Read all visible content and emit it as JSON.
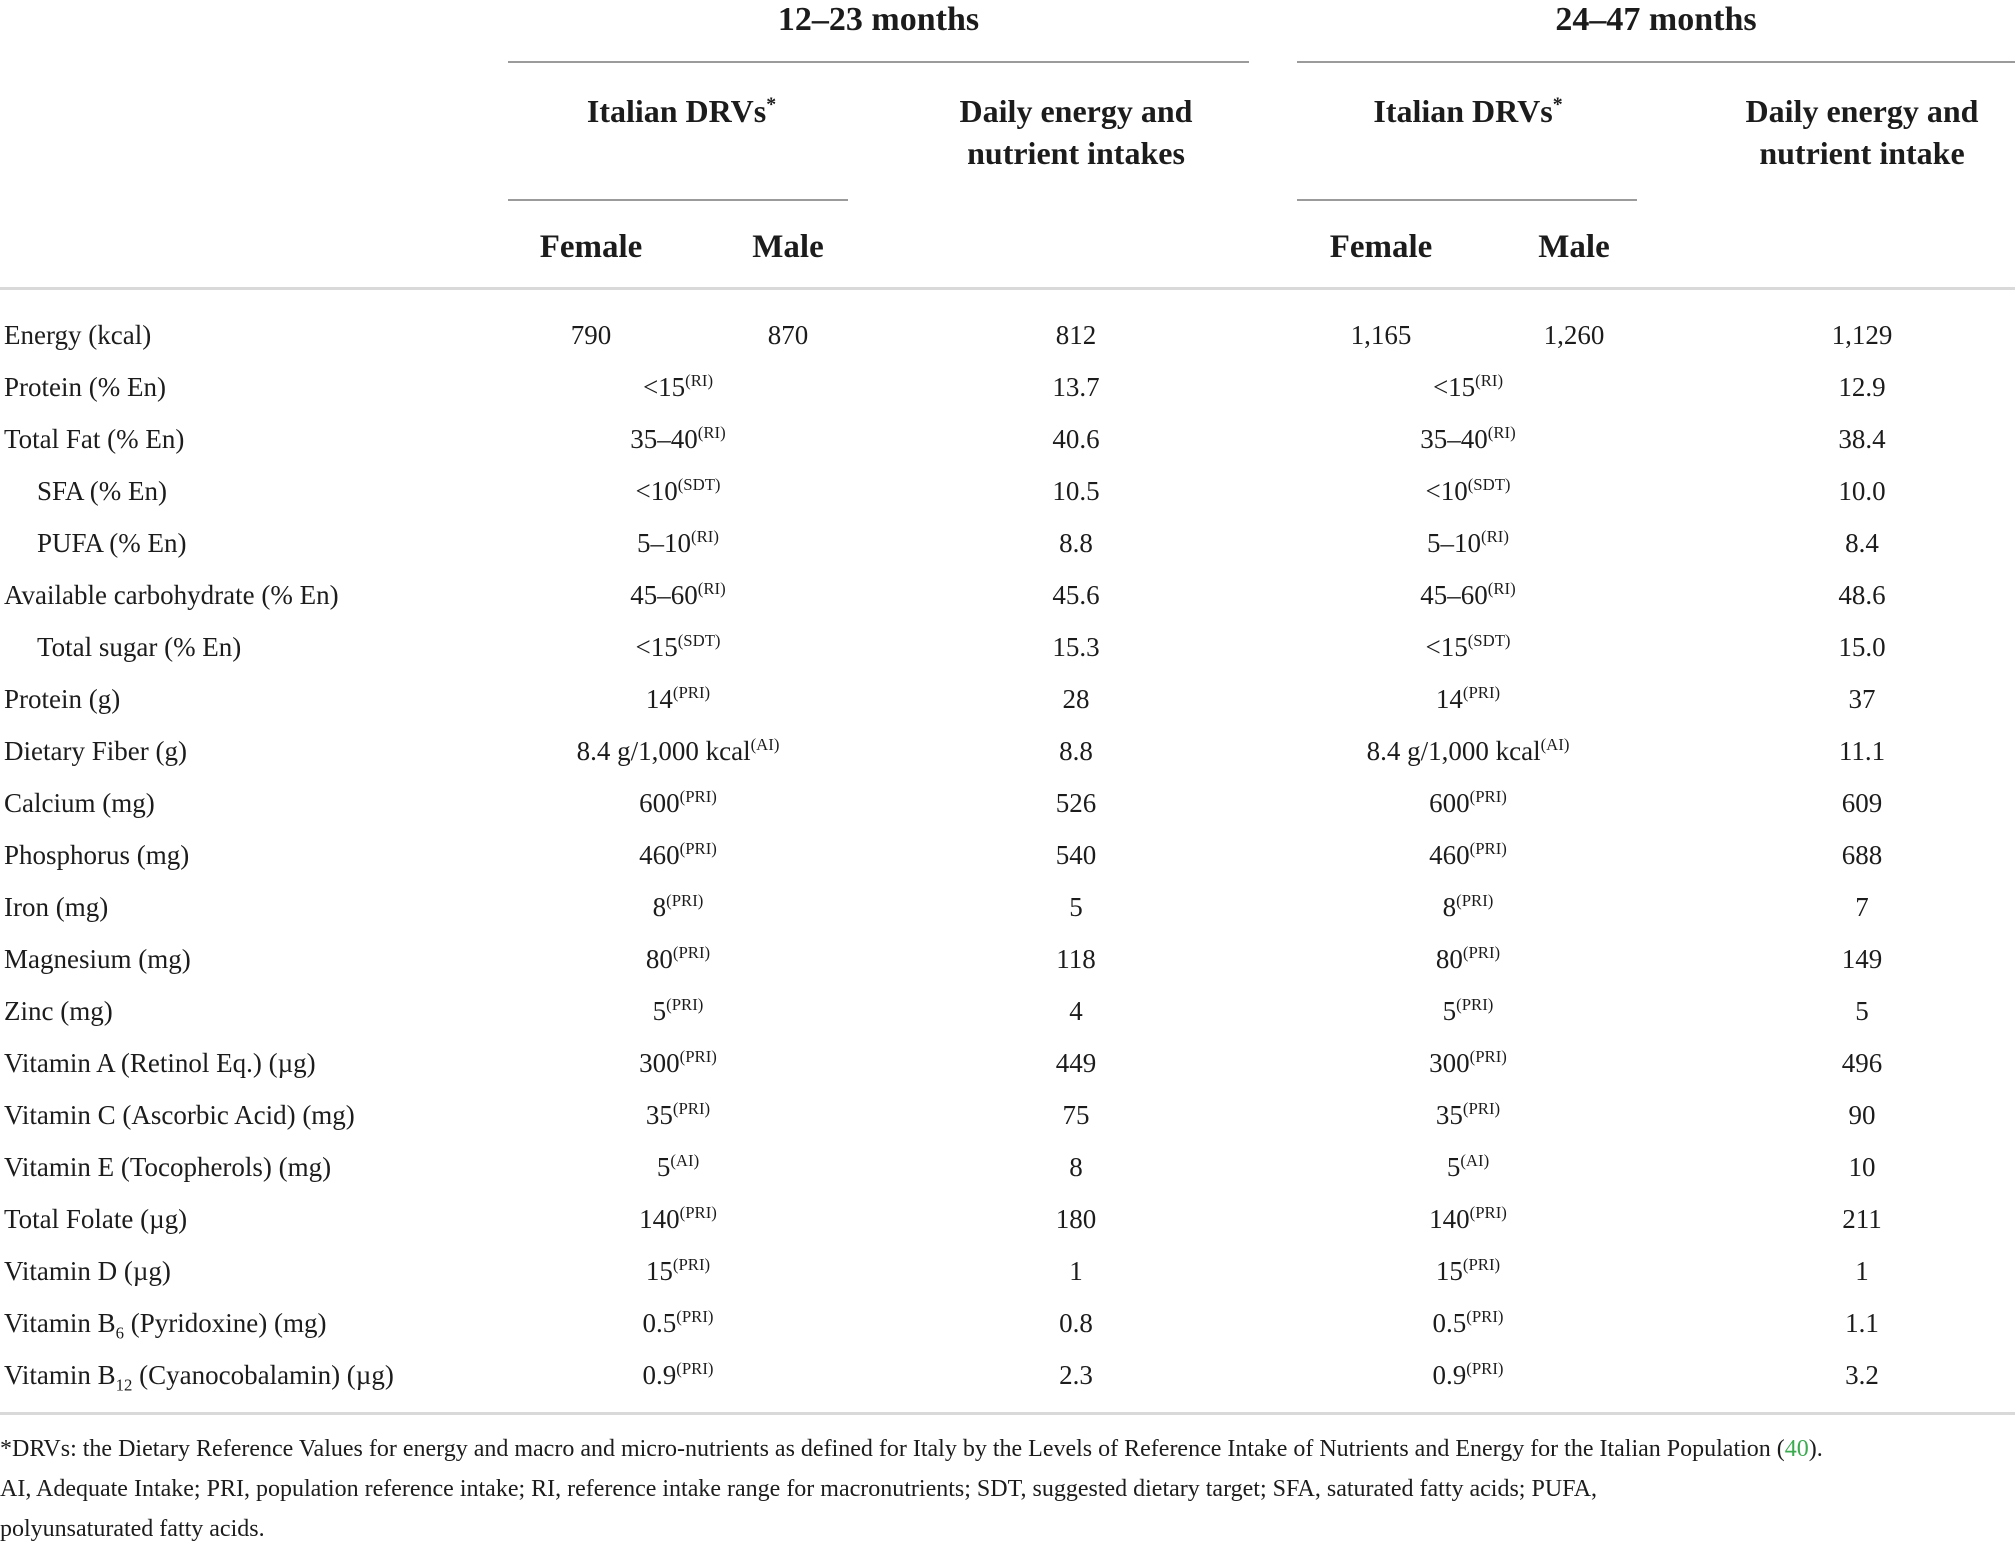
{
  "table": {
    "groups": [
      {
        "title": "12–23 months",
        "drv_header": "Italian DRVs^{*}",
        "intake_header": "Daily energy and nutrient intakes",
        "female": "Female",
        "male": "Male"
      },
      {
        "title": "24–47 months",
        "drv_header": "Italian DRVs^{*}",
        "intake_header": "Daily energy and nutrient intake",
        "female": "Female",
        "male": "Male"
      }
    ],
    "rows": [
      {
        "label": "Energy (kcal)",
        "indent": false,
        "f1": "790",
        "m1": "870",
        "intake1": "812",
        "f2": "1,165",
        "m2": "1,260",
        "intake2": "1,129"
      },
      {
        "label": "Protein (% En)",
        "indent": false,
        "drv1": "<15^{(RI)}",
        "intake1": "13.7",
        "drv2": "<15^{(RI)}",
        "intake2": "12.9"
      },
      {
        "label": "Total Fat (% En)",
        "indent": false,
        "drv1": "35–40^{(RI)}",
        "intake1": "40.6",
        "drv2": "35–40^{(RI)}",
        "intake2": "38.4"
      },
      {
        "label": "SFA (% En)",
        "indent": true,
        "drv1": "<10^{(SDT)}",
        "intake1": "10.5",
        "drv2": "<10^{(SDT)}",
        "intake2": "10.0"
      },
      {
        "label": "PUFA (% En)",
        "indent": true,
        "drv1": "5–10^{(RI)}",
        "intake1": "8.8",
        "drv2": "5–10^{(RI)}",
        "intake2": "8.4"
      },
      {
        "label": "Available carbohydrate (% En)",
        "indent": false,
        "drv1": "45–60^{(RI)}",
        "intake1": "45.6",
        "drv2": "45–60^{(RI)}",
        "intake2": "48.6"
      },
      {
        "label": "Total sugar (% En)",
        "indent": true,
        "drv1": "<15^{(SDT)}",
        "intake1": "15.3",
        "drv2": "<15^{(SDT)}",
        "intake2": "15.0"
      },
      {
        "label": "Protein (g)",
        "indent": false,
        "drv1": "14^{(PRI)}",
        "intake1": "28",
        "drv2": "14^{(PRI)}",
        "intake2": "37"
      },
      {
        "label": "Dietary Fiber (g)",
        "indent": false,
        "drv1": "8.4 g/1,000 kcal^{(AI)}",
        "intake1": "8.8",
        "drv2": "8.4 g/1,000 kcal^{(AI)}",
        "intake2": "11.1"
      },
      {
        "label": "Calcium (mg)",
        "indent": false,
        "drv1": "600^{(PRI)}",
        "intake1": "526",
        "drv2": "600^{(PRI)}",
        "intake2": "609"
      },
      {
        "label": "Phosphorus (mg)",
        "indent": false,
        "drv1": "460^{(PRI)}",
        "intake1": "540",
        "drv2": "460^{(PRI)}",
        "intake2": "688"
      },
      {
        "label": "Iron (mg)",
        "indent": false,
        "drv1": "8^{(PRI)}",
        "intake1": "5",
        "drv2": "8^{(PRI)}",
        "intake2": "7"
      },
      {
        "label": "Magnesium (mg)",
        "indent": false,
        "drv1": "80^{(PRI)}",
        "intake1": "118",
        "drv2": "80^{(PRI)}",
        "intake2": "149"
      },
      {
        "label": "Zinc (mg)",
        "indent": false,
        "drv1": "5^{(PRI)}",
        "intake1": "4",
        "drv2": "5^{(PRI)}",
        "intake2": "5"
      },
      {
        "label": "Vitamin A (Retinol Eq.) (µg)",
        "indent": false,
        "drv1": "300^{(PRI)}",
        "intake1": "449",
        "drv2": "300^{(PRI)}",
        "intake2": "496"
      },
      {
        "label": "Vitamin C (Ascorbic Acid) (mg)",
        "indent": false,
        "drv1": "35^{(PRI)}",
        "intake1": "75",
        "drv2": "35^{(PRI)}",
        "intake2": "90"
      },
      {
        "label": "Vitamin E (Tocopherols) (mg)",
        "indent": false,
        "drv1": "5^{(AI)}",
        "intake1": "8",
        "drv2": "5^{(AI)}",
        "intake2": "10"
      },
      {
        "label": "Total Folate (µg)",
        "indent": false,
        "drv1": "140^{(PRI)}",
        "intake1": "180",
        "drv2": "140^{(PRI)}",
        "intake2": "211"
      },
      {
        "label": "Vitamin D (µg)",
        "indent": false,
        "drv1": "15^{(PRI)}",
        "intake1": "1",
        "drv2": "15^{(PRI)}",
        "intake2": "1"
      },
      {
        "label": "Vitamin B_{6} (Pyridoxine) (mg)",
        "indent": false,
        "drv1": "0.5^{(PRI)}",
        "intake1": "0.8",
        "drv2": "0.5^{(PRI)}",
        "intake2": "1.1"
      },
      {
        "label": "Vitamin B_{12} (Cyanocobalamin) (µg)",
        "indent": false,
        "drv1": "0.9^{(PRI)}",
        "intake1": "2.3",
        "drv2": "0.9^{(PRI)}",
        "intake2": "3.2"
      }
    ]
  },
  "footnote": {
    "line1_pre": "*DRVs: the Dietary Reference Values for energy and macro and micro-nutrients as defined for Italy by the Levels of Reference Intake of Nutrients and Energy for the Italian Population (",
    "ref": "40",
    "line1_post": ").",
    "line2": "AI, Adequate Intake; PRI, population reference intake; RI, reference intake range for macronutrients; SDT, suggested dietary target; SFA, saturated fatty acids; PUFA,",
    "line3": "polyunsaturated fatty acids."
  },
  "colors": {
    "text": "#1c1c1c",
    "citation_green": "#3cab50",
    "rule_dark": "#9b9b9b",
    "rule_light": "#d9d9d9"
  }
}
